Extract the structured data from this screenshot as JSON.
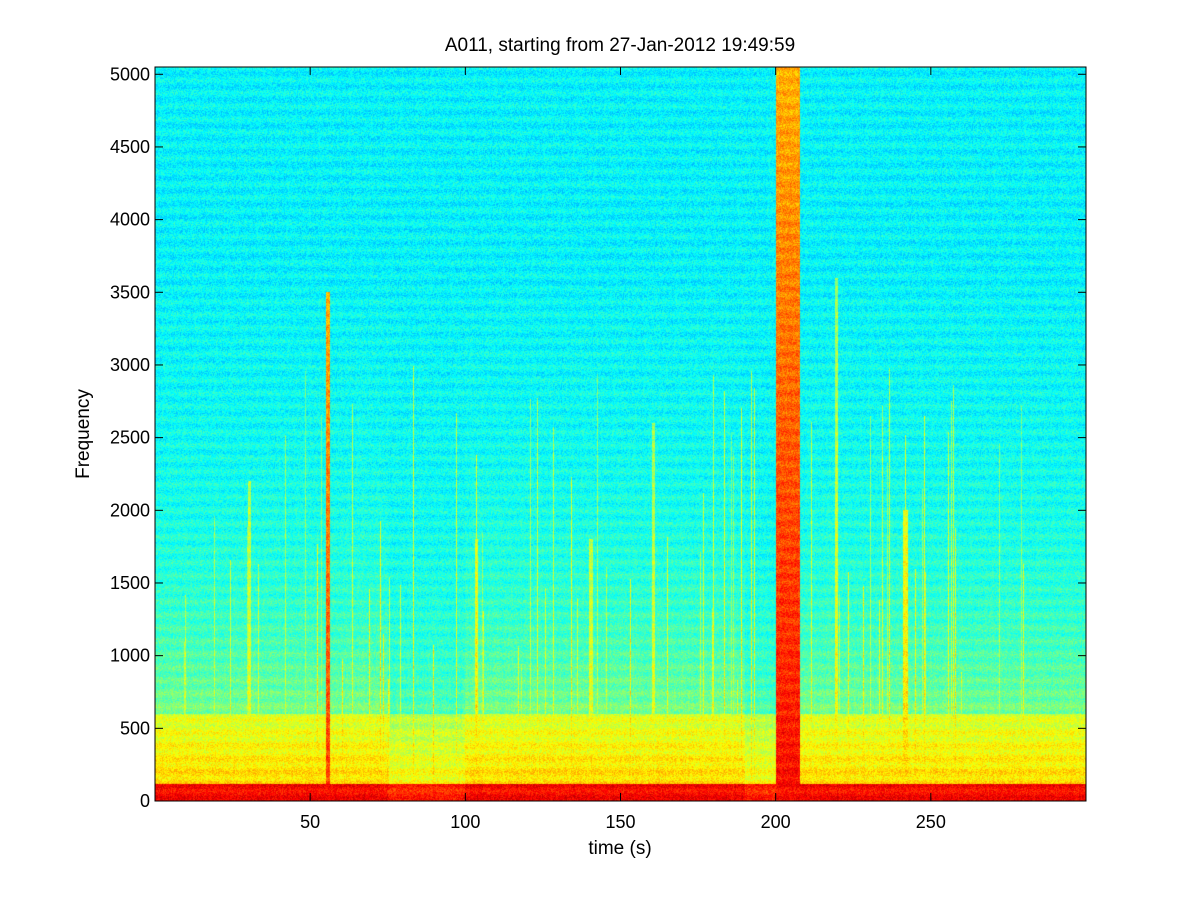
{
  "chart_data": {
    "type": "heatmap",
    "title": "A011, starting from 27-Jan-2012 19:49:59",
    "xlabel": "time (s)",
    "ylabel": "Frequency",
    "xlim": [
      0,
      300
    ],
    "ylim": [
      0,
      5050
    ],
    "xticks": [
      50,
      100,
      150,
      200,
      250
    ],
    "yticks": [
      0,
      500,
      1000,
      1500,
      2000,
      2500,
      3000,
      3500,
      4000,
      4500,
      5000
    ],
    "xtick_labels": [
      "50",
      "100",
      "150",
      "200",
      "250"
    ],
    "ytick_labels": [
      "0",
      "500",
      "1000",
      "1500",
      "2000",
      "2500",
      "3000",
      "3500",
      "4000",
      "4500",
      "5000"
    ],
    "grid": false,
    "colormap": "jet",
    "intensity_scale": "relative 0-1",
    "background_intensity": 0.35,
    "low_freq_band": {
      "freq_max": 600,
      "intensity": 0.65
    },
    "base_band": {
      "freq_max": 120,
      "intensity": 0.85
    },
    "broadband_events": [
      {
        "time_start": 55,
        "time_end": 56.5,
        "freq_max": 3500,
        "intensity": 0.8
      },
      {
        "time_start": 200,
        "time_end": 208,
        "freq_max": 5050,
        "intensity": 0.85
      },
      {
        "time_start": 30,
        "time_end": 31,
        "freq_max": 2200,
        "intensity": 0.6
      },
      {
        "time_start": 103,
        "time_end": 104,
        "freq_max": 1800,
        "intensity": 0.62
      },
      {
        "time_start": 140,
        "time_end": 141,
        "freq_max": 1800,
        "intensity": 0.6
      },
      {
        "time_start": 160,
        "time_end": 161,
        "freq_max": 2600,
        "intensity": 0.6
      },
      {
        "time_start": 219,
        "time_end": 220,
        "freq_max": 3600,
        "intensity": 0.62
      },
      {
        "time_start": 241,
        "time_end": 242.5,
        "freq_max": 2000,
        "intensity": 0.65
      }
    ],
    "active_periods": [
      {
        "time_start": 0,
        "time_end": 75,
        "intensity": 0.7
      },
      {
        "time_start": 100,
        "time_end": 190,
        "intensity": 0.7
      },
      {
        "time_start": 208,
        "time_end": 300,
        "intensity": 0.68
      }
    ]
  },
  "colors": {
    "background": "#ffffff",
    "axis": "#000000",
    "cmap_low": "#00dcdc",
    "cmap_mid": "#ffff00",
    "cmap_high": "#ff0000"
  }
}
